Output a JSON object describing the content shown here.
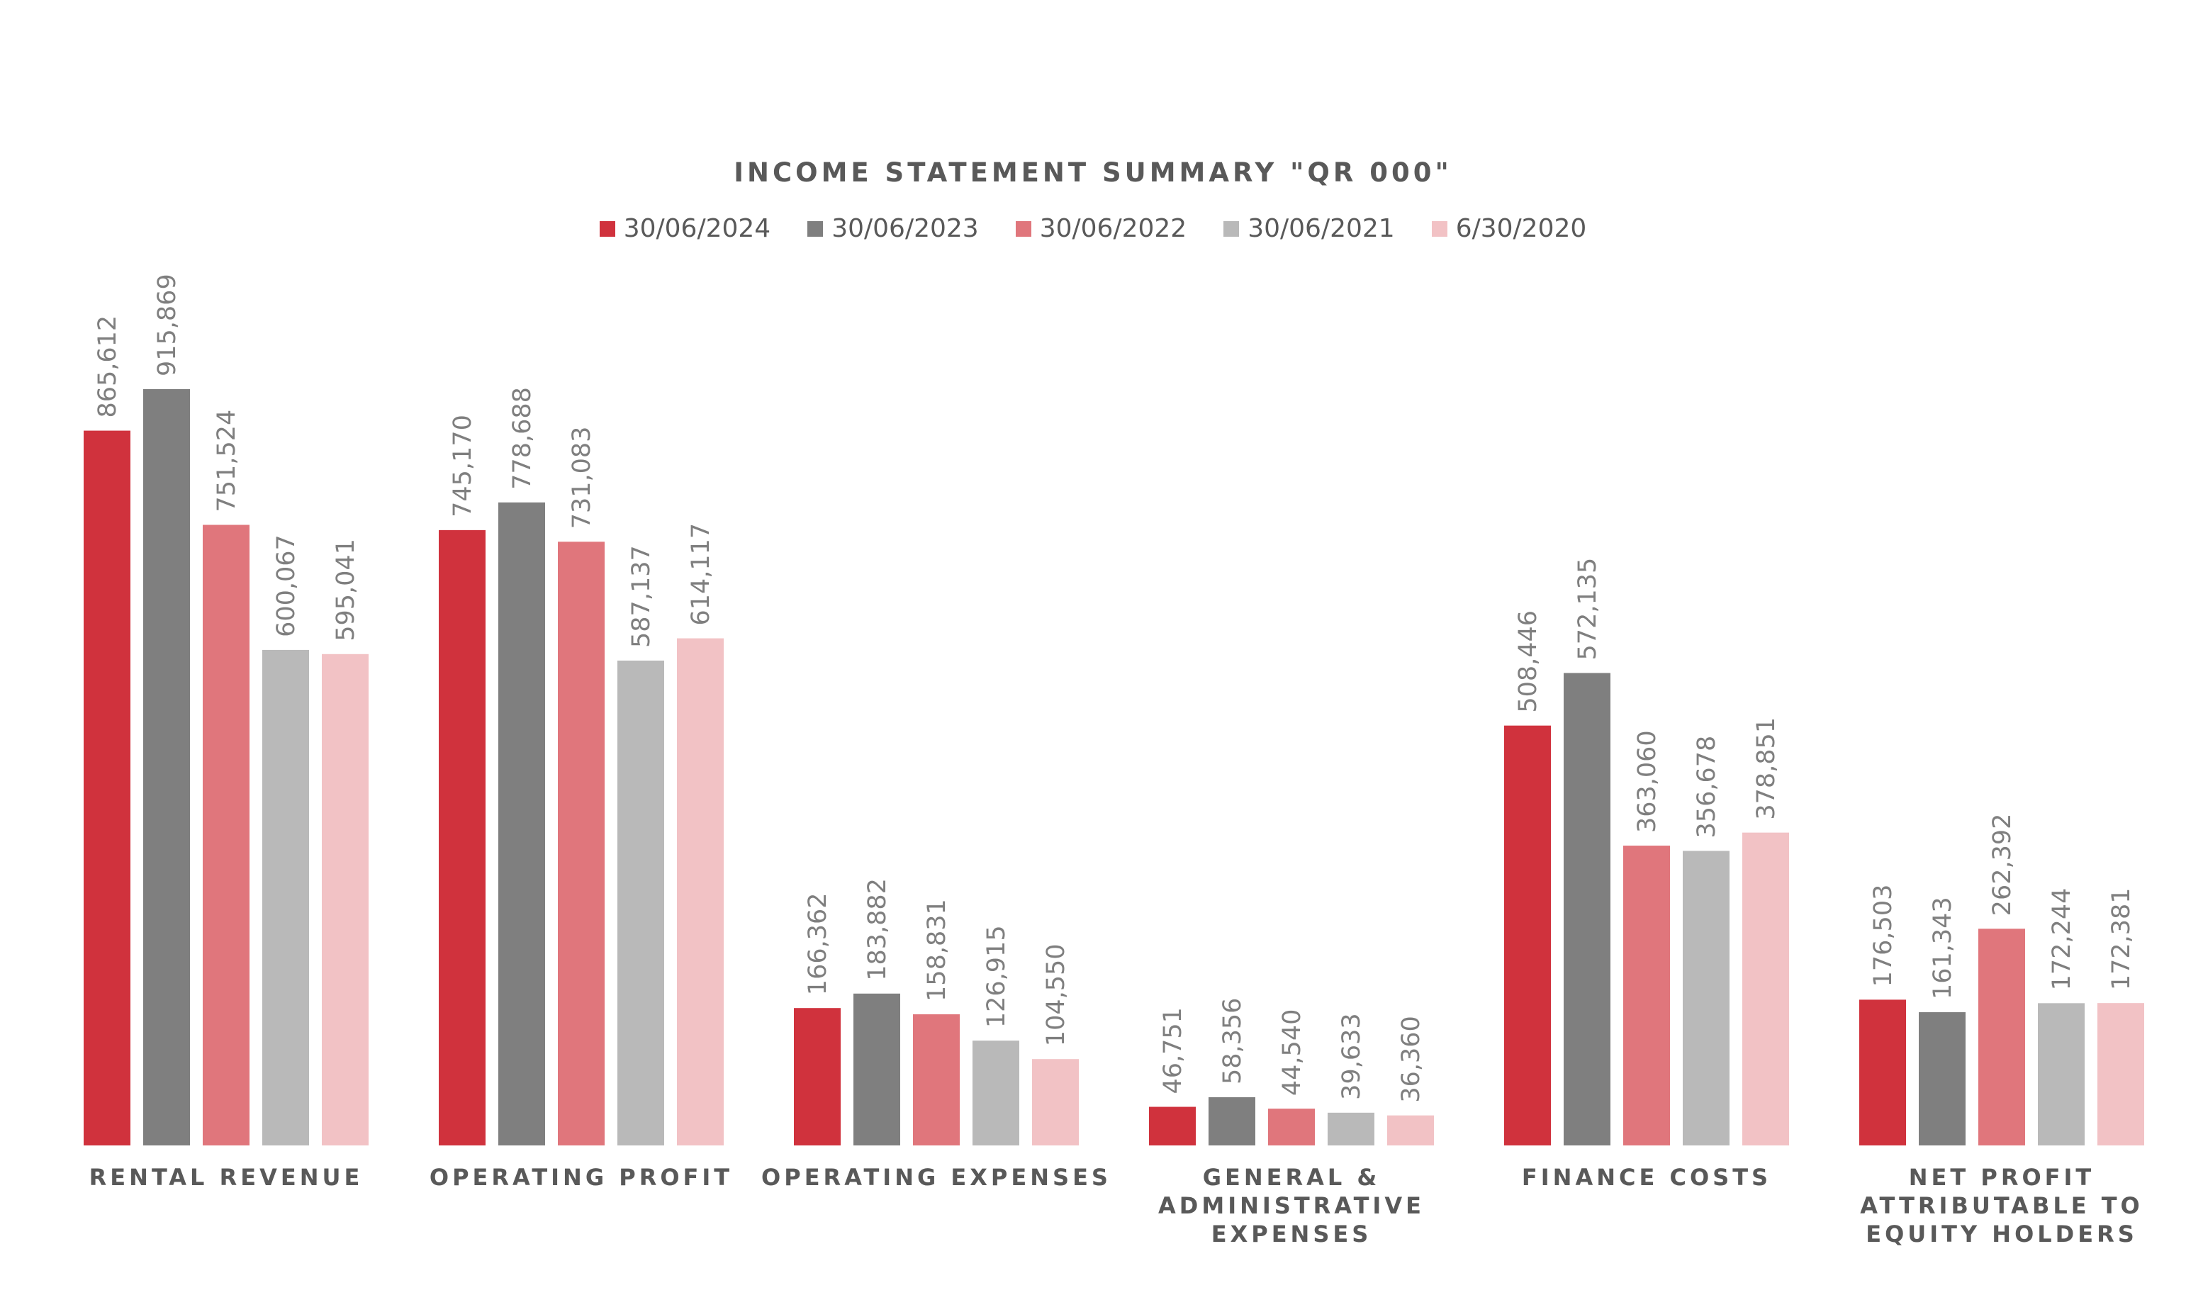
{
  "chart_data": {
    "type": "bar",
    "title": "INCOME STATEMENT SUMMARY \"QR 000\"",
    "categories": [
      [
        "RENTAL REVENUE"
      ],
      [
        "OPERATING PROFIT"
      ],
      [
        "OPERATING EXPENSES"
      ],
      [
        "GENERAL &",
        "ADMINISTRATIVE",
        "EXPENSES"
      ],
      [
        "FINANCE COSTS"
      ],
      [
        "NET PROFIT",
        "ATTRIBUTABLE TO",
        "EQUITY HOLDERS"
      ]
    ],
    "series": [
      {
        "name": "30/06/2024",
        "color": "#d0323d",
        "values": [
          865612,
          745170,
          166362,
          46751,
          508446,
          176503
        ]
      },
      {
        "name": "30/06/2023",
        "color": "#7f7f7f",
        "values": [
          915869,
          778688,
          183882,
          58356,
          572135,
          161343
        ]
      },
      {
        "name": "30/06/2022",
        "color": "#e0767c",
        "values": [
          751524,
          731083,
          158831,
          44540,
          363060,
          262392
        ]
      },
      {
        "name": "30/06/2021",
        "color": "#b9b9b9",
        "values": [
          600067,
          587137,
          126915,
          39633,
          356678,
          172244
        ]
      },
      {
        "name": "6/30/2020",
        "color": "#f2c2c5",
        "values": [
          595041,
          614117,
          104550,
          36360,
          378851,
          172381
        ]
      }
    ],
    "ylim": [
      0,
      1000000
    ],
    "grid": false,
    "legend_position": "top",
    "xlabel": "",
    "ylabel": ""
  }
}
